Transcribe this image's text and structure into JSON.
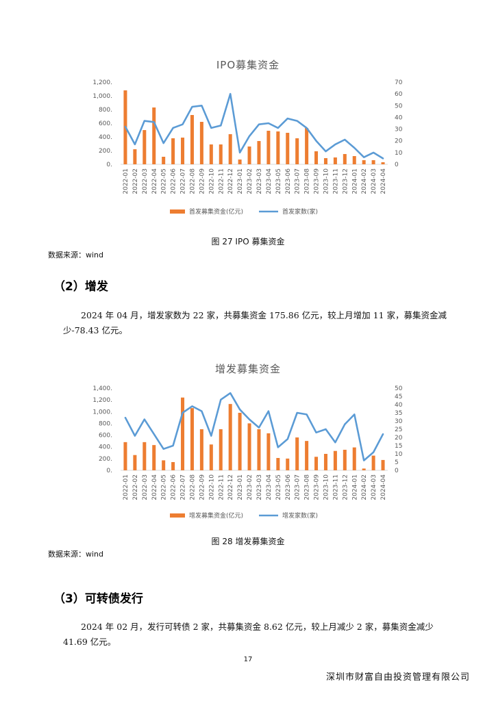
{
  "section_ipo": {
    "caption": "图 27 IPO 募集资金",
    "source": "数据来源：wind"
  },
  "section_seo": {
    "heading": "（2）增发",
    "paragraph": "2024 年 04 月，增发家数为 22 家，共募集资金 175.86 亿元，较上月增加 11 家，募集资金减少-78.43 亿元。",
    "caption": "图 28  增发募集资金",
    "source": "数据来源：wind"
  },
  "section_cb": {
    "heading": "（3）可转债发行",
    "paragraph": "2024 年 02 月，发行可转债 2 家，共募集资金 8.62 亿元，较上月减少 2 家，募集资金减少 41.69 亿元。"
  },
  "footer": {
    "page_number": "17",
    "company": "深圳市财富自由投资管理有限公司"
  },
  "colors": {
    "bar": "#ED7D31",
    "line": "#5B9BD5",
    "grid_text": "#595959"
  },
  "chart_data": [
    {
      "type": "bar+line",
      "title": "IPO募集资金",
      "categories": [
        "2022-01",
        "2022-02",
        "2022-03",
        "2022-04",
        "2022-05",
        "2022-06",
        "2022-07",
        "2022-08",
        "2022-09",
        "2022-10",
        "2022-11",
        "2022-12",
        "2023-01",
        "2023-02",
        "2023-03",
        "2023-04",
        "2023-05",
        "2023-06",
        "2023-07",
        "2023-08",
        "2023-09",
        "2023-10",
        "2023-11",
        "2023-12",
        "2024-01",
        "2024-02",
        "2024-03",
        "2024-04"
      ],
      "series": [
        {
          "name": "首发募集资金(亿元)",
          "kind": "bar",
          "axis": "left",
          "values": [
            1080,
            220,
            500,
            830,
            110,
            380,
            390,
            720,
            620,
            290,
            290,
            440,
            70,
            260,
            340,
            490,
            480,
            460,
            380,
            530,
            190,
            90,
            100,
            150,
            120,
            60,
            60,
            30
          ]
        },
        {
          "name": "首发家数(家)",
          "kind": "line",
          "axis": "right",
          "values": [
            32,
            17,
            37,
            36,
            18,
            31,
            34,
            49,
            50,
            31,
            33,
            60,
            10,
            24,
            34,
            35,
            31,
            39,
            37,
            31,
            20,
            11,
            17,
            21,
            14,
            6,
            10,
            5
          ]
        }
      ],
      "left_axis": {
        "min": 0,
        "max": 1200,
        "ticks": [
          "0.",
          "200.",
          "400.",
          "600.",
          "800.",
          "1,000.",
          "1,200."
        ]
      },
      "right_axis": {
        "min": 0,
        "max": 70,
        "ticks": [
          "0",
          "10",
          "20",
          "30",
          "40",
          "50",
          "60",
          "70"
        ]
      },
      "legend_position": "bottom"
    },
    {
      "type": "bar+line",
      "title": "增发募集资金",
      "categories": [
        "2022-01",
        "2022-02",
        "2022-03",
        "2022-04",
        "2022-05",
        "2022-06",
        "2022-07",
        "2022-08",
        "2022-09",
        "2022-10",
        "2022-11",
        "2022-12",
        "2023-01",
        "2023-02",
        "2023-03",
        "2023-04",
        "2023-05",
        "2023-06",
        "2023-07",
        "2023-08",
        "2023-09",
        "2023-10",
        "2023-11",
        "2023-12",
        "2024-01",
        "2024-02",
        "2024-03",
        "2024-04"
      ],
      "series": [
        {
          "name": "增发募集资金(亿元)",
          "kind": "bar",
          "axis": "left",
          "values": [
            480,
            260,
            480,
            430,
            170,
            140,
            1240,
            1060,
            700,
            440,
            700,
            1130,
            980,
            800,
            700,
            630,
            210,
            200,
            560,
            500,
            230,
            280,
            330,
            350,
            390,
            30,
            250,
            175.86
          ]
        },
        {
          "name": "增发家数(家)",
          "kind": "line",
          "axis": "right",
          "values": [
            32,
            21,
            31,
            22,
            13,
            15,
            35,
            39,
            36,
            21,
            43,
            47,
            37,
            31,
            26,
            36,
            14,
            19,
            35,
            34,
            23,
            25,
            17,
            28,
            34,
            6,
            11,
            22
          ]
        }
      ],
      "left_axis": {
        "min": 0,
        "max": 1400,
        "ticks": [
          "0.",
          "200.",
          "400.",
          "600.",
          "800.",
          "1,000.",
          "1,200.",
          "1,400."
        ]
      },
      "right_axis": {
        "min": 0,
        "max": 50,
        "ticks": [
          "0",
          "5",
          "10",
          "15",
          "20",
          "25",
          "30",
          "35",
          "40",
          "45",
          "50"
        ]
      },
      "legend_position": "bottom"
    }
  ]
}
